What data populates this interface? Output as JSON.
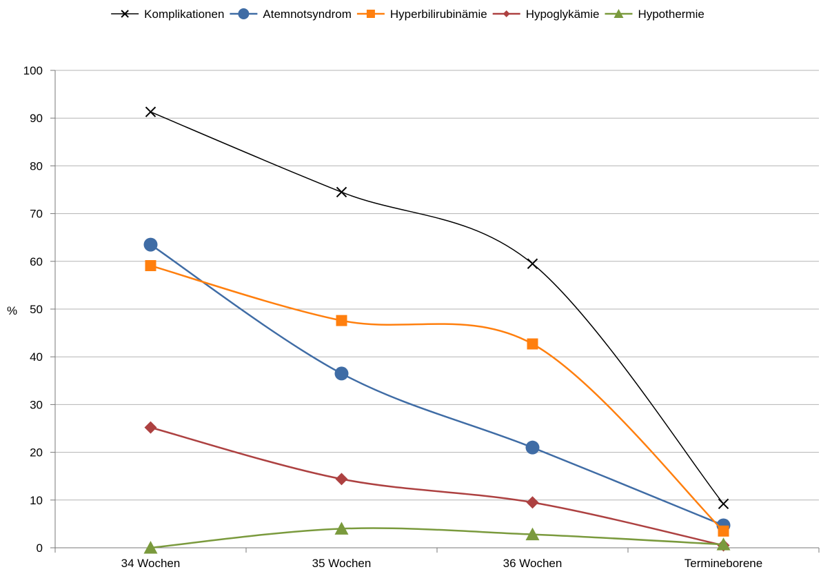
{
  "chart_data": {
    "type": "line",
    "categories": [
      "34 Wochen",
      "35 Wochen",
      "36 Wochen",
      "Termineborene"
    ],
    "ylabel": "%",
    "ylim": [
      0,
      100
    ],
    "yticks": [
      0,
      10,
      20,
      30,
      40,
      50,
      60,
      70,
      80,
      90,
      100
    ],
    "grid": true,
    "legend_position": "top",
    "series": [
      {
        "name": "Komplikationen",
        "color": "#000000",
        "marker": "x",
        "values": [
          91.3,
          74.5,
          59.5,
          9.2
        ]
      },
      {
        "name": "Atemnotsyndrom",
        "color": "#3f6ca5",
        "marker": "circle",
        "values": [
          63.5,
          36.5,
          21.0,
          4.7
        ]
      },
      {
        "name": "Hyperbilirubinämie",
        "color": "#ff7f0e",
        "marker": "square",
        "values": [
          59.1,
          47.6,
          42.7,
          3.5
        ]
      },
      {
        "name": "Hypoglykämie",
        "color": "#ad4141",
        "marker": "diamond",
        "values": [
          25.2,
          14.4,
          9.5,
          0.5
        ]
      },
      {
        "name": "Hypothermie",
        "color": "#7a9a3d",
        "marker": "triangle",
        "values": [
          0.0,
          4.0,
          2.8,
          0.7
        ]
      }
    ]
  }
}
